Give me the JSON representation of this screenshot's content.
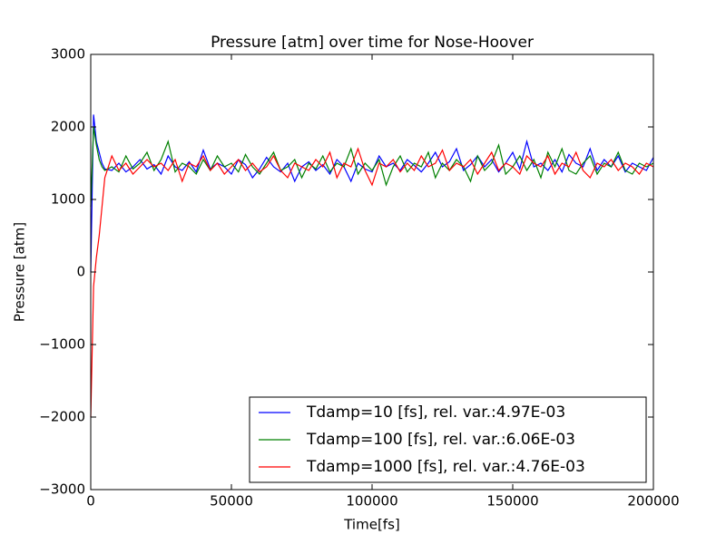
{
  "chart_data": {
    "type": "line",
    "title": "Pressure [atm] over time for Nose-Hoover",
    "x_label": "Time[fs]",
    "y_label": "Pressure [atm]",
    "xlim": [
      0,
      200000
    ],
    "xticks": [
      0,
      50000,
      100000,
      150000,
      200000
    ],
    "ylim": [
      -3000,
      3000
    ],
    "yticks": [
      {
        "value": -3000,
        "label": "−3000"
      },
      {
        "value": -2000,
        "label": "−2000"
      },
      {
        "value": -1000,
        "label": "−1000"
      },
      0,
      1000,
      2000,
      3000
    ],
    "legend": "lower right",
    "x": [
      0,
      1000,
      2000,
      3000,
      4000,
      5000,
      7500,
      10000,
      12500,
      15000,
      17500,
      20000,
      22500,
      25000,
      27500,
      30000,
      32500,
      35000,
      37500,
      40000,
      42500,
      45000,
      47500,
      50000,
      52500,
      55000,
      57500,
      60000,
      62500,
      65000,
      67500,
      70000,
      72500,
      75000,
      77500,
      80000,
      82500,
      85000,
      87500,
      90000,
      92500,
      95000,
      97500,
      100000,
      102500,
      105000,
      107500,
      110000,
      112500,
      115000,
      117500,
      120000,
      122500,
      125000,
      127500,
      130000,
      132500,
      135000,
      137500,
      140000,
      142500,
      145000,
      147500,
      150000,
      152500,
      155000,
      157500,
      160000,
      162500,
      165000,
      167500,
      170000,
      172500,
      175000,
      177500,
      180000,
      182500,
      185000,
      187500,
      190000,
      192500,
      195000,
      197500,
      200000
    ],
    "series": [
      {
        "name": "Tdamp=10 [fs], rel. var.:4.97E-03",
        "color": "#0000ff",
        "values": [
          0,
          2170,
          1800,
          1650,
          1500,
          1420,
          1400,
          1500,
          1380,
          1450,
          1550,
          1420,
          1480,
          1350,
          1600,
          1450,
          1400,
          1520,
          1380,
          1680,
          1420,
          1500,
          1450,
          1350,
          1550,
          1480,
          1300,
          1420,
          1580,
          1450,
          1380,
          1500,
          1250,
          1450,
          1520,
          1400,
          1480,
          1350,
          1550,
          1450,
          1250,
          1500,
          1420,
          1380,
          1600,
          1450,
          1500,
          1400,
          1550,
          1470,
          1380,
          1500,
          1650,
          1450,
          1520,
          1700,
          1400,
          1480,
          1600,
          1450,
          1550,
          1380,
          1500,
          1650,
          1420,
          1800,
          1450,
          1500,
          1400,
          1550,
          1380,
          1620,
          1500,
          1450,
          1700,
          1400,
          1550,
          1450,
          1600,
          1380,
          1500,
          1450,
          1400,
          1580
        ]
      },
      {
        "name": "Tdamp=100 [fs], rel. var.:6.06E-03",
        "color": "#008000",
        "values": [
          900,
          2000,
          1750,
          1550,
          1450,
          1400,
          1450,
          1380,
          1600,
          1420,
          1500,
          1650,
          1400,
          1550,
          1800,
          1380,
          1500,
          1450,
          1350,
          1550,
          1400,
          1600,
          1450,
          1500,
          1380,
          1620,
          1450,
          1350,
          1500,
          1650,
          1400,
          1450,
          1550,
          1300,
          1500,
          1420,
          1600,
          1380,
          1500,
          1450,
          1700,
          1350,
          1500,
          1400,
          1550,
          1200,
          1450,
          1600,
          1380,
          1500,
          1450,
          1650,
          1300,
          1500,
          1400,
          1550,
          1450,
          1250,
          1600,
          1400,
          1500,
          1750,
          1350,
          1450,
          1600,
          1400,
          1550,
          1300,
          1650,
          1450,
          1700,
          1400,
          1350,
          1500,
          1600,
          1350,
          1500,
          1450,
          1650,
          1400,
          1350,
          1500,
          1450,
          1500
        ]
      },
      {
        "name": "Tdamp=1000 [fs], rel. var.:4.76E-03",
        "color": "#ff0000",
        "values": [
          -2000,
          -200,
          200,
          500,
          900,
          1300,
          1600,
          1400,
          1500,
          1350,
          1450,
          1550,
          1450,
          1500,
          1400,
          1550,
          1250,
          1500,
          1450,
          1600,
          1400,
          1500,
          1350,
          1450,
          1550,
          1400,
          1500,
          1380,
          1450,
          1600,
          1400,
          1300,
          1500,
          1450,
          1400,
          1550,
          1450,
          1650,
          1300,
          1500,
          1450,
          1700,
          1400,
          1200,
          1500,
          1450,
          1550,
          1380,
          1500,
          1400,
          1600,
          1450,
          1500,
          1680,
          1400,
          1500,
          1450,
          1550,
          1350,
          1500,
          1650,
          1400,
          1500,
          1450,
          1350,
          1600,
          1500,
          1450,
          1600,
          1350,
          1500,
          1450,
          1650,
          1400,
          1300,
          1500,
          1450,
          1550,
          1400,
          1500,
          1450,
          1350,
          1500,
          1450
        ]
      }
    ]
  }
}
